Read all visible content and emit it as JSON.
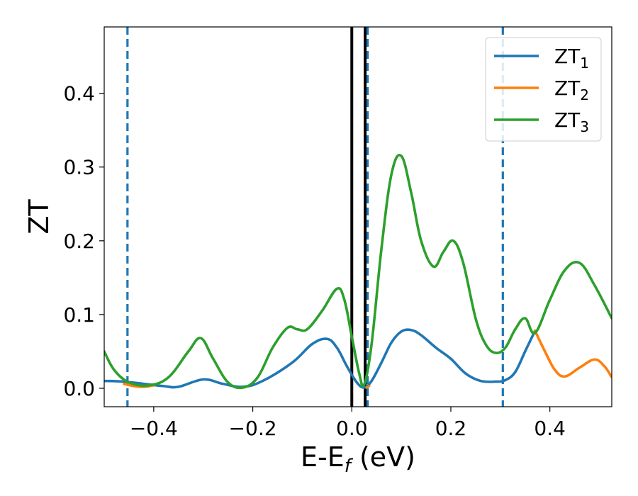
{
  "chart_data": {
    "type": "line",
    "xlabel_main": "E-E",
    "xlabel_sub": "f",
    "xlabel_tail": " (eV)",
    "ylabel": "ZT",
    "xlim": [
      -0.5,
      0.525
    ],
    "ylim": [
      -0.025,
      0.49
    ],
    "x_ticks": [
      -0.4,
      -0.2,
      0.0,
      0.2,
      0.4
    ],
    "x_tick_labels": [
      "−0.4",
      "−0.2",
      "0.0",
      "0.2",
      "0.4"
    ],
    "y_ticks": [
      0.0,
      0.1,
      0.2,
      0.3,
      0.4
    ],
    "y_tick_labels": [
      "0.0",
      "0.1",
      "0.2",
      "0.3",
      "0.4"
    ],
    "grid": false,
    "legend_position": "top-right",
    "vertical_lines": [
      {
        "x": -0.453,
        "style": "dashed",
        "color": "#1f77b4"
      },
      {
        "x": 0.0,
        "style": "solid",
        "color": "#000000"
      },
      {
        "x": 0.027,
        "style": "solid",
        "color": "#000000"
      },
      {
        "x": 0.032,
        "style": "dashed",
        "color": "#1f77b4"
      },
      {
        "x": 0.305,
        "style": "dashed",
        "color": "#1f77b4"
      }
    ],
    "series": [
      {
        "name_main": "ZT",
        "name_sub": "1",
        "color": "#1f77b4",
        "x": [
          -0.5,
          -0.46,
          -0.42,
          -0.38,
          -0.35,
          -0.3,
          -0.26,
          -0.22,
          -0.18,
          -0.12,
          -0.08,
          -0.05,
          -0.03,
          -0.01,
          0.01,
          0.025,
          0.04,
          0.06,
          0.08,
          0.1,
          0.12,
          0.14,
          0.17,
          0.2,
          0.23,
          0.26,
          0.29,
          0.31,
          0.33,
          0.35,
          0.37
        ],
        "y": [
          0.01,
          0.009,
          0.006,
          0.003,
          0.002,
          0.012,
          0.006,
          0.002,
          0.01,
          0.035,
          0.06,
          0.067,
          0.055,
          0.03,
          0.008,
          0.001,
          0.01,
          0.035,
          0.062,
          0.077,
          0.079,
          0.072,
          0.055,
          0.04,
          0.02,
          0.01,
          0.009,
          0.011,
          0.022,
          0.05,
          0.078
        ]
      },
      {
        "name_main": "ZT",
        "name_sub": "2",
        "color": "#ff7f0e",
        "x": [
          -0.46,
          -0.44,
          -0.42,
          -0.4,
          0.03,
          0.035,
          0.37,
          0.39,
          0.41,
          0.43,
          0.46,
          0.49,
          0.51,
          0.525
        ],
        "y": [
          0.006,
          0.003,
          0.002,
          0.004,
          0.001,
          0.003,
          0.078,
          0.05,
          0.025,
          0.016,
          0.028,
          0.039,
          0.03,
          0.015
        ]
      },
      {
        "name_main": "ZT",
        "name_sub": "3",
        "color": "#2ca02c",
        "x": [
          -0.5,
          -0.48,
          -0.45,
          -0.41,
          -0.37,
          -0.33,
          -0.305,
          -0.28,
          -0.25,
          -0.22,
          -0.19,
          -0.16,
          -0.13,
          -0.11,
          -0.09,
          -0.06,
          -0.03,
          -0.015,
          0.0,
          0.015,
          0.025,
          0.04,
          0.06,
          0.08,
          0.1,
          0.12,
          0.14,
          0.165,
          0.185,
          0.205,
          0.225,
          0.25,
          0.27,
          0.29,
          0.31,
          0.33,
          0.35,
          0.37,
          0.4,
          0.43,
          0.46,
          0.49,
          0.525
        ],
        "y": [
          0.05,
          0.025,
          0.008,
          0.004,
          0.015,
          0.05,
          0.068,
          0.04,
          0.008,
          0.001,
          0.015,
          0.055,
          0.082,
          0.08,
          0.08,
          0.105,
          0.135,
          0.12,
          0.07,
          0.02,
          0.005,
          0.06,
          0.19,
          0.29,
          0.315,
          0.265,
          0.2,
          0.165,
          0.185,
          0.2,
          0.17,
          0.095,
          0.06,
          0.048,
          0.055,
          0.08,
          0.095,
          0.075,
          0.12,
          0.16,
          0.17,
          0.14,
          0.095
        ]
      }
    ]
  }
}
